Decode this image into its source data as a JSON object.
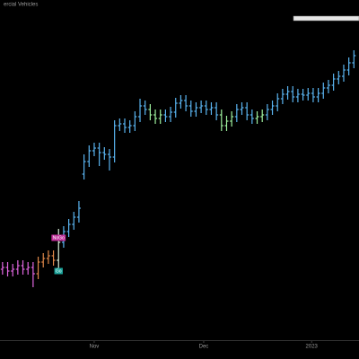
{
  "chart_data": {
    "type": "ohlc",
    "title": "ercial Vehicles",
    "xlim": [
      -0.5,
      70
    ],
    "ylim": [
      0,
      355
    ],
    "xticks": [
      {
        "value": 18,
        "label": "Nov"
      },
      {
        "value": 39.5,
        "label": "Dec"
      },
      {
        "value": 60.7,
        "label": "2023"
      }
    ],
    "open": [
      80,
      82,
      78,
      80,
      84,
      80,
      82,
      75,
      88,
      92,
      95,
      90,
      110,
      122,
      130,
      138,
      186,
      200,
      212,
      215,
      210,
      208,
      205,
      240,
      242,
      238,
      240,
      250,
      262,
      258,
      252,
      248,
      252,
      250,
      255,
      265,
      268,
      262,
      256,
      260,
      262,
      258,
      260,
      252,
      240,
      245,
      250,
      258,
      260,
      252,
      248,
      250,
      252,
      258,
      262,
      270,
      275,
      278,
      272,
      275,
      274,
      276,
      272,
      276,
      282,
      285,
      292,
      295,
      302,
      310
    ],
    "high": [
      88,
      88,
      86,
      90,
      90,
      88,
      88,
      94,
      98,
      101,
      101,
      125,
      128,
      136,
      144,
      156,
      208,
      218,
      221,
      221,
      216,
      214,
      246,
      248,
      248,
      246,
      256,
      270,
      268,
      264,
      258,
      258,
      258,
      261,
      271,
      274,
      274,
      268,
      266,
      268,
      268,
      266,
      266,
      258,
      251,
      256,
      264,
      266,
      266,
      258,
      256,
      258,
      264,
      268,
      276,
      281,
      284,
      284,
      281,
      281,
      282,
      282,
      282,
      288,
      291,
      298,
      301,
      308,
      316,
      324
    ],
    "low": [
      74,
      72,
      72,
      74,
      74,
      74,
      60,
      69,
      82,
      86,
      84,
      80,
      104,
      116,
      124,
      132,
      180,
      194,
      206,
      195,
      202,
      190,
      199,
      234,
      232,
      232,
      234,
      244,
      252,
      246,
      242,
      242,
      244,
      244,
      249,
      259,
      256,
      250,
      250,
      254,
      252,
      252,
      246,
      234,
      234,
      239,
      244,
      252,
      246,
      242,
      242,
      244,
      246,
      252,
      256,
      264,
      269,
      266,
      266,
      268,
      268,
      266,
      266,
      270,
      276,
      279,
      286,
      289,
      296,
      304
    ],
    "close": [
      82,
      78,
      80,
      84,
      80,
      82,
      75,
      88,
      92,
      95,
      90,
      110,
      122,
      130,
      138,
      148,
      200,
      212,
      215,
      210,
      208,
      205,
      240,
      242,
      238,
      240,
      250,
      262,
      258,
      252,
      248,
      252,
      250,
      255,
      265,
      268,
      262,
      256,
      260,
      262,
      258,
      260,
      252,
      240,
      245,
      250,
      258,
      260,
      252,
      248,
      250,
      252,
      258,
      262,
      270,
      275,
      278,
      272,
      275,
      274,
      276,
      272,
      276,
      282,
      285,
      292,
      295,
      302,
      310,
      318
    ],
    "colors": [
      "#e066e0",
      "#e066e0",
      "#e066e0",
      "#e066e0",
      "#e066e0",
      "#e066e0",
      "#e066e0",
      "#e0894a",
      "#e0894a",
      "#e0894a",
      "#e0894a",
      "#d8f0d8",
      "#5ab4f0",
      "#5ab4f0",
      "#5ab4f0",
      "#5ab4f0",
      "#5ab4f0",
      "#5ab4f0",
      "#5ab4f0",
      "#5ab4f0",
      "#5ab4f0",
      "#5ab4f0",
      "#5ab4f0",
      "#5ab4f0",
      "#5ab4f0",
      "#5ab4f0",
      "#5ab4f0",
      "#5ab4f0",
      "#5ab4f0",
      "#9ef09e",
      "#9ef09e",
      "#9ef09e",
      "#5ab4f0",
      "#5ab4f0",
      "#5ab4f0",
      "#5ab4f0",
      "#5ab4f0",
      "#5ab4f0",
      "#5ab4f0",
      "#5ab4f0",
      "#5ab4f0",
      "#5ab4f0",
      "#5ab4f0",
      "#9ef09e",
      "#9ef09e",
      "#9ef09e",
      "#5ab4f0",
      "#5ab4f0",
      "#5ab4f0",
      "#5ab4f0",
      "#9ef09e",
      "#9ef09e",
      "#5ab4f0",
      "#5ab4f0",
      "#5ab4f0",
      "#5ab4f0",
      "#5ab4f0",
      "#5ab4f0",
      "#5ab4f0",
      "#5ab4f0",
      "#5ab4f0",
      "#5ab4f0",
      "#5ab4f0",
      "#5ab4f0",
      "#5ab4f0",
      "#5ab4f0",
      "#5ab4f0",
      "#5ab4f0",
      "#5ab4f0",
      "#5ab4f0"
    ],
    "annotations": [
      {
        "text": "NoGo",
        "x": 11,
        "y": 115,
        "color": "#c0309a"
      },
      {
        "text": "Go",
        "x": 11,
        "y": 78,
        "color": "#1aa39a"
      }
    ]
  }
}
